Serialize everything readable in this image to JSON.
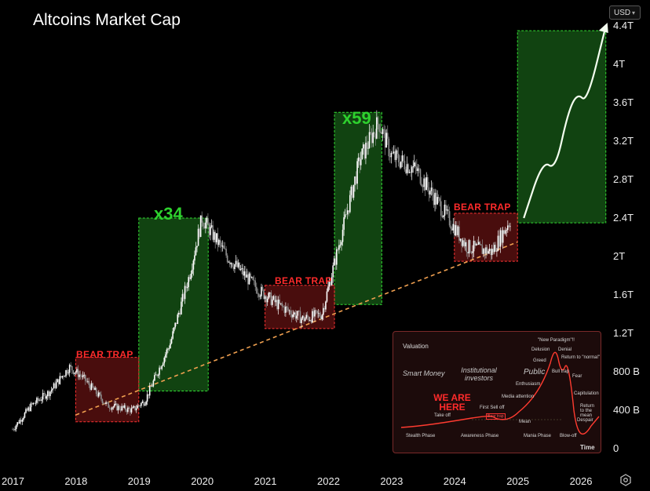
{
  "header": {
    "title": "Altcoins Market Cap",
    "currency": "USD"
  },
  "colors": {
    "up": "#ffffff",
    "down": "#8f8f8f",
    "green": "#2ed12e",
    "red": "#ff2b2b",
    "trend": "#f0a050"
  },
  "chart_data": {
    "type": "candlestick",
    "title": "Altcoins Market Cap",
    "x_labels": [
      "2017",
      "2018",
      "2019",
      "2020",
      "2021",
      "2022",
      "2023",
      "2024",
      "2025",
      "2026"
    ],
    "y_labels": [
      "4.4T",
      "4T",
      "3.6T",
      "3.2T",
      "2.8T",
      "2.4T",
      "2T",
      "1.6T",
      "1.2T",
      "800 B",
      "400 B",
      "0"
    ],
    "y_range_trillions": [
      0,
      4.4
    ],
    "price_path": [
      {
        "t": 2017.0,
        "v": 0.2
      },
      {
        "t": 2017.3,
        "v": 0.45
      },
      {
        "t": 2017.6,
        "v": 0.6
      },
      {
        "t": 2017.9,
        "v": 0.85
      },
      {
        "t": 2018.1,
        "v": 0.75
      },
      {
        "t": 2018.5,
        "v": 0.45
      },
      {
        "t": 2018.9,
        "v": 0.4
      },
      {
        "t": 2019.1,
        "v": 0.5
      },
      {
        "t": 2019.5,
        "v": 1.1
      },
      {
        "t": 2019.8,
        "v": 1.8
      },
      {
        "t": 2020.0,
        "v": 2.4
      },
      {
        "t": 2020.4,
        "v": 2.0
      },
      {
        "t": 2020.9,
        "v": 1.65
      },
      {
        "t": 2021.2,
        "v": 1.5
      },
      {
        "t": 2021.6,
        "v": 1.35
      },
      {
        "t": 2021.9,
        "v": 1.4
      },
      {
        "t": 2022.2,
        "v": 2.2
      },
      {
        "t": 2022.5,
        "v": 3.0
      },
      {
        "t": 2022.8,
        "v": 3.4
      },
      {
        "t": 2023.0,
        "v": 3.05
      },
      {
        "t": 2023.4,
        "v": 2.9
      },
      {
        "t": 2023.8,
        "v": 2.5
      },
      {
        "t": 2024.2,
        "v": 2.1
      },
      {
        "t": 2024.6,
        "v": 2.05
      },
      {
        "t": 2024.9,
        "v": 2.4
      }
    ],
    "projection": [
      {
        "t": 2025.1,
        "v": 2.4
      },
      {
        "t": 2025.4,
        "v": 3.0
      },
      {
        "t": 2025.6,
        "v": 2.9
      },
      {
        "t": 2025.8,
        "v": 3.5
      },
      {
        "t": 2025.95,
        "v": 3.7
      },
      {
        "t": 2026.1,
        "v": 3.6
      },
      {
        "t": 2026.4,
        "v": 4.4
      }
    ],
    "trendline": [
      {
        "t": 2018.0,
        "v": 0.35
      },
      {
        "t": 2025.0,
        "v": 2.15
      }
    ],
    "pump_zones": [
      {
        "label": "x34",
        "t0": 2019.0,
        "t1": 2020.1,
        "v0": 0.6,
        "v1": 2.4
      },
      {
        "label": "x59",
        "t0": 2022.1,
        "t1": 2022.85,
        "v0": 1.5,
        "v1": 3.5
      },
      {
        "label": "",
        "t0": 2025.0,
        "t1": 2026.4,
        "v0": 2.35,
        "v1": 4.35
      }
    ],
    "bear_zones": [
      {
        "label": "BEAR TRAP",
        "t0": 2018.0,
        "t1": 2019.0,
        "v0": 0.28,
        "v1": 0.95
      },
      {
        "label": "BEAR TRAP",
        "t0": 2021.0,
        "t1": 2022.1,
        "v0": 1.25,
        "v1": 1.7
      },
      {
        "label": "BEAR TRAP",
        "t0": 2024.0,
        "t1": 2025.0,
        "v0": 1.95,
        "v1": 2.45
      }
    ]
  },
  "inset": {
    "axis_y": "Valuation",
    "axis_x": "Time",
    "we_are_here": "WE ARE HERE",
    "groups": [
      "Smart Money",
      "Institutional investors",
      "Public"
    ],
    "phases": [
      "Stealth Phase",
      "Awareness Phase",
      "Mania Phase",
      "Blow-off"
    ],
    "stages": {
      "new_paradigm": "\"New Paradigm\"!!",
      "delusion": "Delusion",
      "denial": "Denial",
      "return_normal": "Return to \"normal\"",
      "greed": "Greed",
      "bull_trap": "Bull trap",
      "fear": "Fear",
      "enthusiasm": "Enthusiasm",
      "capitulation": "Capitulation",
      "media": "Media attention",
      "return_mean": "Return to the mean",
      "first_sell": "First Sell off",
      "despair": "Despair",
      "take_off": "Take off",
      "bear_trap": "Bear trap",
      "mean": "Mean"
    }
  }
}
